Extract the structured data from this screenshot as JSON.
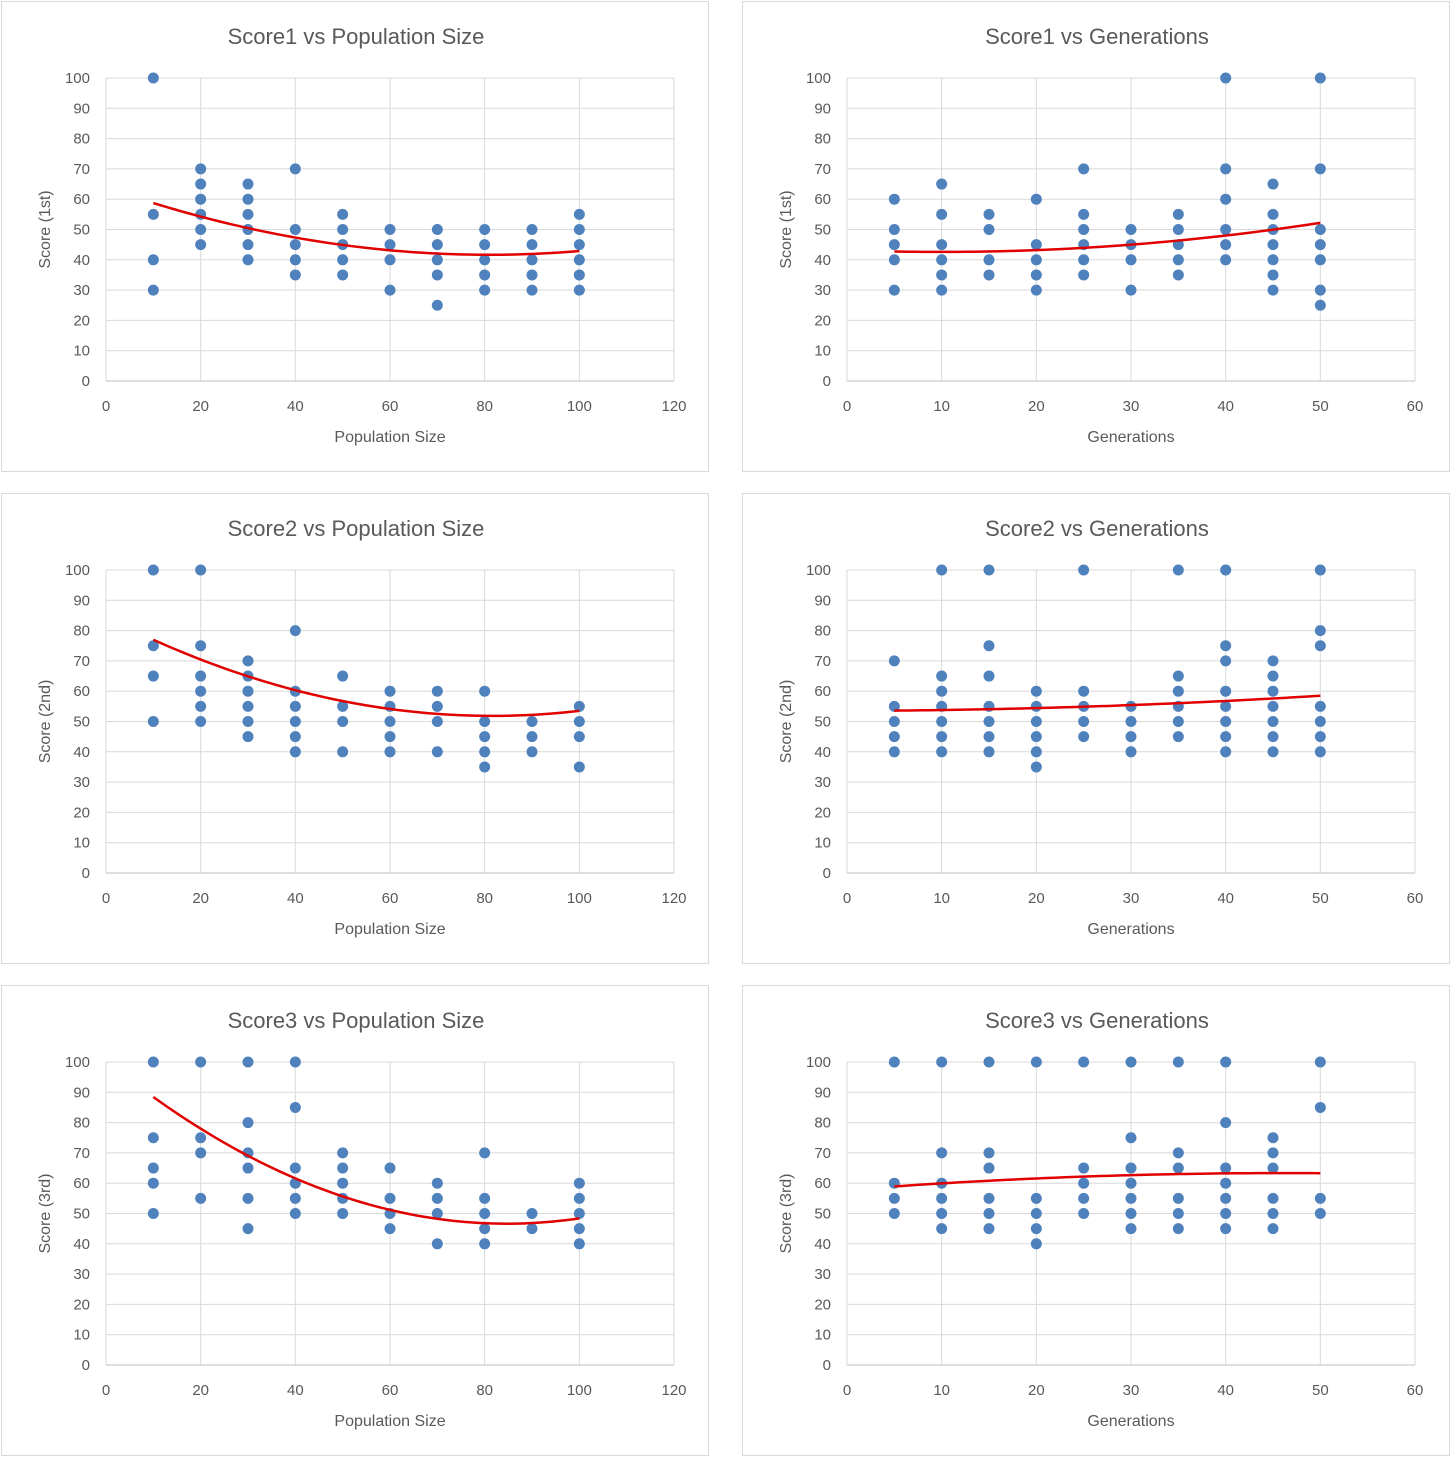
{
  "colors": {
    "point": "#4f81bd",
    "trend": "#e00000"
  },
  "chart_data": [
    {
      "type": "scatter",
      "title": "Score1 vs Population Size",
      "xlabel": "Population Size",
      "ylabel": "Score (1st)",
      "xlim": [
        0,
        120
      ],
      "ylim": [
        0,
        100
      ],
      "xstep": 20,
      "ystep": 10,
      "points": [
        [
          10,
          100
        ],
        [
          10,
          55
        ],
        [
          10,
          40
        ],
        [
          10,
          30
        ],
        [
          20,
          70
        ],
        [
          20,
          65
        ],
        [
          20,
          60
        ],
        [
          20,
          55
        ],
        [
          20,
          50
        ],
        [
          20,
          45
        ],
        [
          30,
          65
        ],
        [
          30,
          60
        ],
        [
          30,
          55
        ],
        [
          30,
          50
        ],
        [
          30,
          45
        ],
        [
          30,
          40
        ],
        [
          40,
          70
        ],
        [
          40,
          50
        ],
        [
          40,
          45
        ],
        [
          40,
          40
        ],
        [
          40,
          35
        ],
        [
          50,
          55
        ],
        [
          50,
          50
        ],
        [
          50,
          45
        ],
        [
          50,
          40
        ],
        [
          50,
          35
        ],
        [
          60,
          50
        ],
        [
          60,
          45
        ],
        [
          60,
          40
        ],
        [
          60,
          30
        ],
        [
          70,
          50
        ],
        [
          70,
          45
        ],
        [
          70,
          40
        ],
        [
          70,
          35
        ],
        [
          70,
          25
        ],
        [
          80,
          50
        ],
        [
          80,
          45
        ],
        [
          80,
          40
        ],
        [
          80,
          35
        ],
        [
          80,
          30
        ],
        [
          90,
          50
        ],
        [
          90,
          45
        ],
        [
          90,
          40
        ],
        [
          90,
          35
        ],
        [
          90,
          30
        ],
        [
          100,
          55
        ],
        [
          100,
          50
        ],
        [
          100,
          45
        ],
        [
          100,
          40
        ],
        [
          100,
          35
        ],
        [
          100,
          30
        ]
      ],
      "trendline": {
        "type": "polynomial",
        "x": [
          10,
          100
        ],
        "coef": [
          63.9,
          -0.55,
          0.0034
        ]
      }
    },
    {
      "type": "scatter",
      "title": "Score1 vs Generations",
      "xlabel": "Generations",
      "ylabel": "Score (1st)",
      "xlim": [
        0,
        60
      ],
      "ylim": [
        0,
        100
      ],
      "xstep": 10,
      "ystep": 10,
      "points": [
        [
          5,
          60
        ],
        [
          5,
          50
        ],
        [
          5,
          45
        ],
        [
          5,
          40
        ],
        [
          5,
          30
        ],
        [
          10,
          65
        ],
        [
          10,
          55
        ],
        [
          10,
          45
        ],
        [
          10,
          40
        ],
        [
          10,
          35
        ],
        [
          10,
          30
        ],
        [
          15,
          55
        ],
        [
          15,
          50
        ],
        [
          15,
          40
        ],
        [
          15,
          35
        ],
        [
          20,
          60
        ],
        [
          20,
          45
        ],
        [
          20,
          40
        ],
        [
          20,
          35
        ],
        [
          20,
          30
        ],
        [
          25,
          70
        ],
        [
          25,
          55
        ],
        [
          25,
          50
        ],
        [
          25,
          45
        ],
        [
          25,
          40
        ],
        [
          25,
          35
        ],
        [
          30,
          50
        ],
        [
          30,
          45
        ],
        [
          30,
          40
        ],
        [
          30,
          30
        ],
        [
          35,
          55
        ],
        [
          35,
          50
        ],
        [
          35,
          45
        ],
        [
          35,
          40
        ],
        [
          35,
          35
        ],
        [
          40,
          100
        ],
        [
          40,
          70
        ],
        [
          40,
          60
        ],
        [
          40,
          50
        ],
        [
          40,
          45
        ],
        [
          40,
          40
        ],
        [
          45,
          65
        ],
        [
          45,
          55
        ],
        [
          45,
          50
        ],
        [
          45,
          45
        ],
        [
          45,
          40
        ],
        [
          45,
          35
        ],
        [
          45,
          30
        ],
        [
          50,
          100
        ],
        [
          50,
          70
        ],
        [
          50,
          50
        ],
        [
          50,
          45
        ],
        [
          50,
          40
        ],
        [
          50,
          30
        ],
        [
          50,
          25
        ]
      ],
      "trendline": {
        "type": "polynomial",
        "x": [
          5,
          50
        ],
        "coef": [
          43.2,
          -0.12,
          0.006
        ]
      }
    },
    {
      "type": "scatter",
      "title": "Score2 vs Population Size",
      "xlabel": "Population Size",
      "ylabel": "Score (2nd)",
      "xlim": [
        0,
        120
      ],
      "ylim": [
        0,
        100
      ],
      "xstep": 20,
      "ystep": 10,
      "points": [
        [
          10,
          100
        ],
        [
          10,
          75
        ],
        [
          10,
          65
        ],
        [
          10,
          50
        ],
        [
          20,
          100
        ],
        [
          20,
          75
        ],
        [
          20,
          65
        ],
        [
          20,
          60
        ],
        [
          20,
          55
        ],
        [
          20,
          50
        ],
        [
          30,
          70
        ],
        [
          30,
          65
        ],
        [
          30,
          60
        ],
        [
          30,
          55
        ],
        [
          30,
          50
        ],
        [
          30,
          45
        ],
        [
          40,
          80
        ],
        [
          40,
          60
        ],
        [
          40,
          55
        ],
        [
          40,
          50
        ],
        [
          40,
          45
        ],
        [
          40,
          40
        ],
        [
          50,
          65
        ],
        [
          50,
          55
        ],
        [
          50,
          50
        ],
        [
          50,
          40
        ],
        [
          60,
          60
        ],
        [
          60,
          55
        ],
        [
          60,
          50
        ],
        [
          60,
          45
        ],
        [
          60,
          40
        ],
        [
          70,
          60
        ],
        [
          70,
          55
        ],
        [
          70,
          50
        ],
        [
          70,
          40
        ],
        [
          80,
          60
        ],
        [
          80,
          50
        ],
        [
          80,
          45
        ],
        [
          80,
          40
        ],
        [
          80,
          35
        ],
        [
          90,
          50
        ],
        [
          90,
          45
        ],
        [
          90,
          40
        ],
        [
          100,
          55
        ],
        [
          100,
          50
        ],
        [
          100,
          45
        ],
        [
          100,
          35
        ]
      ],
      "trendline": {
        "type": "polynomial",
        "x": [
          10,
          100
        ],
        "coef": [
          84.5,
          -0.8,
          0.0049
        ]
      }
    },
    {
      "type": "scatter",
      "title": "Score2 vs Generations",
      "xlabel": "Generations",
      "ylabel": "Score (2nd)",
      "xlim": [
        0,
        60
      ],
      "ylim": [
        0,
        100
      ],
      "xstep": 10,
      "ystep": 10,
      "points": [
        [
          5,
          70
        ],
        [
          5,
          55
        ],
        [
          5,
          50
        ],
        [
          5,
          45
        ],
        [
          5,
          40
        ],
        [
          10,
          100
        ],
        [
          10,
          65
        ],
        [
          10,
          60
        ],
        [
          10,
          55
        ],
        [
          10,
          50
        ],
        [
          10,
          45
        ],
        [
          10,
          40
        ],
        [
          15,
          100
        ],
        [
          15,
          75
        ],
        [
          15,
          65
        ],
        [
          15,
          55
        ],
        [
          15,
          50
        ],
        [
          15,
          45
        ],
        [
          15,
          40
        ],
        [
          20,
          60
        ],
        [
          20,
          55
        ],
        [
          20,
          50
        ],
        [
          20,
          45
        ],
        [
          20,
          40
        ],
        [
          20,
          35
        ],
        [
          25,
          100
        ],
        [
          25,
          60
        ],
        [
          25,
          55
        ],
        [
          25,
          50
        ],
        [
          25,
          45
        ],
        [
          30,
          55
        ],
        [
          30,
          50
        ],
        [
          30,
          45
        ],
        [
          30,
          40
        ],
        [
          35,
          100
        ],
        [
          35,
          65
        ],
        [
          35,
          60
        ],
        [
          35,
          55
        ],
        [
          35,
          50
        ],
        [
          35,
          45
        ],
        [
          40,
          100
        ],
        [
          40,
          75
        ],
        [
          40,
          70
        ],
        [
          40,
          60
        ],
        [
          40,
          55
        ],
        [
          40,
          50
        ],
        [
          40,
          45
        ],
        [
          40,
          40
        ],
        [
          45,
          70
        ],
        [
          45,
          65
        ],
        [
          45,
          60
        ],
        [
          45,
          55
        ],
        [
          45,
          50
        ],
        [
          45,
          45
        ],
        [
          45,
          40
        ],
        [
          50,
          100
        ],
        [
          50,
          80
        ],
        [
          50,
          75
        ],
        [
          50,
          55
        ],
        [
          50,
          50
        ],
        [
          50,
          45
        ],
        [
          50,
          40
        ]
      ],
      "trendline": {
        "type": "polynomial",
        "x": [
          5,
          50
        ],
        "coef": [
          53.5,
          0.01,
          0.0018
        ]
      }
    },
    {
      "type": "scatter",
      "title": "Score3 vs Population Size",
      "xlabel": "Population Size",
      "ylabel": "Score (3rd)",
      "xlim": [
        0,
        120
      ],
      "ylim": [
        0,
        100
      ],
      "xstep": 20,
      "ystep": 10,
      "points": [
        [
          10,
          100
        ],
        [
          10,
          75
        ],
        [
          10,
          65
        ],
        [
          10,
          60
        ],
        [
          10,
          50
        ],
        [
          20,
          100
        ],
        [
          20,
          75
        ],
        [
          20,
          70
        ],
        [
          20,
          55
        ],
        [
          30,
          100
        ],
        [
          30,
          80
        ],
        [
          30,
          70
        ],
        [
          30,
          65
        ],
        [
          30,
          55
        ],
        [
          30,
          45
        ],
        [
          40,
          100
        ],
        [
          40,
          85
        ],
        [
          40,
          65
        ],
        [
          40,
          60
        ],
        [
          40,
          55
        ],
        [
          40,
          50
        ],
        [
          50,
          70
        ],
        [
          50,
          65
        ],
        [
          50,
          60
        ],
        [
          50,
          55
        ],
        [
          50,
          50
        ],
        [
          60,
          65
        ],
        [
          60,
          55
        ],
        [
          60,
          50
        ],
        [
          60,
          45
        ],
        [
          70,
          60
        ],
        [
          70,
          55
        ],
        [
          70,
          50
        ],
        [
          70,
          40
        ],
        [
          80,
          70
        ],
        [
          80,
          55
        ],
        [
          80,
          50
        ],
        [
          80,
          45
        ],
        [
          80,
          40
        ],
        [
          90,
          50
        ],
        [
          90,
          45
        ],
        [
          100,
          60
        ],
        [
          100,
          55
        ],
        [
          100,
          50
        ],
        [
          100,
          45
        ],
        [
          100,
          40
        ]
      ],
      "trendline": {
        "type": "polynomial",
        "x": [
          10,
          100
        ],
        "coef": [
          100.4,
          -1.27,
          0.0075
        ]
      }
    },
    {
      "type": "scatter",
      "title": "Score3 vs Generations",
      "xlabel": "Generations",
      "ylabel": "Score (3rd)",
      "xlim": [
        0,
        60
      ],
      "ylim": [
        0,
        100
      ],
      "xstep": 10,
      "ystep": 10,
      "points": [
        [
          5,
          100
        ],
        [
          5,
          60
        ],
        [
          5,
          55
        ],
        [
          5,
          50
        ],
        [
          10,
          100
        ],
        [
          10,
          70
        ],
        [
          10,
          60
        ],
        [
          10,
          55
        ],
        [
          10,
          50
        ],
        [
          10,
          45
        ],
        [
          15,
          100
        ],
        [
          15,
          70
        ],
        [
          15,
          65
        ],
        [
          15,
          55
        ],
        [
          15,
          50
        ],
        [
          15,
          45
        ],
        [
          20,
          100
        ],
        [
          20,
          55
        ],
        [
          20,
          50
        ],
        [
          20,
          45
        ],
        [
          20,
          40
        ],
        [
          25,
          100
        ],
        [
          25,
          65
        ],
        [
          25,
          60
        ],
        [
          25,
          55
        ],
        [
          25,
          50
        ],
        [
          30,
          100
        ],
        [
          30,
          75
        ],
        [
          30,
          65
        ],
        [
          30,
          60
        ],
        [
          30,
          55
        ],
        [
          30,
          50
        ],
        [
          30,
          45
        ],
        [
          35,
          100
        ],
        [
          35,
          70
        ],
        [
          35,
          65
        ],
        [
          35,
          55
        ],
        [
          35,
          50
        ],
        [
          35,
          45
        ],
        [
          40,
          100
        ],
        [
          40,
          80
        ],
        [
          40,
          65
        ],
        [
          40,
          60
        ],
        [
          40,
          55
        ],
        [
          40,
          50
        ],
        [
          40,
          45
        ],
        [
          45,
          75
        ],
        [
          45,
          70
        ],
        [
          45,
          65
        ],
        [
          45,
          55
        ],
        [
          45,
          50
        ],
        [
          45,
          45
        ],
        [
          50,
          100
        ],
        [
          50,
          85
        ],
        [
          50,
          55
        ],
        [
          50,
          50
        ]
      ],
      "trendline": {
        "type": "polynomial",
        "x": [
          5,
          50
        ],
        "coef": [
          57.8,
          0.24,
          -0.0026
        ]
      }
    }
  ]
}
